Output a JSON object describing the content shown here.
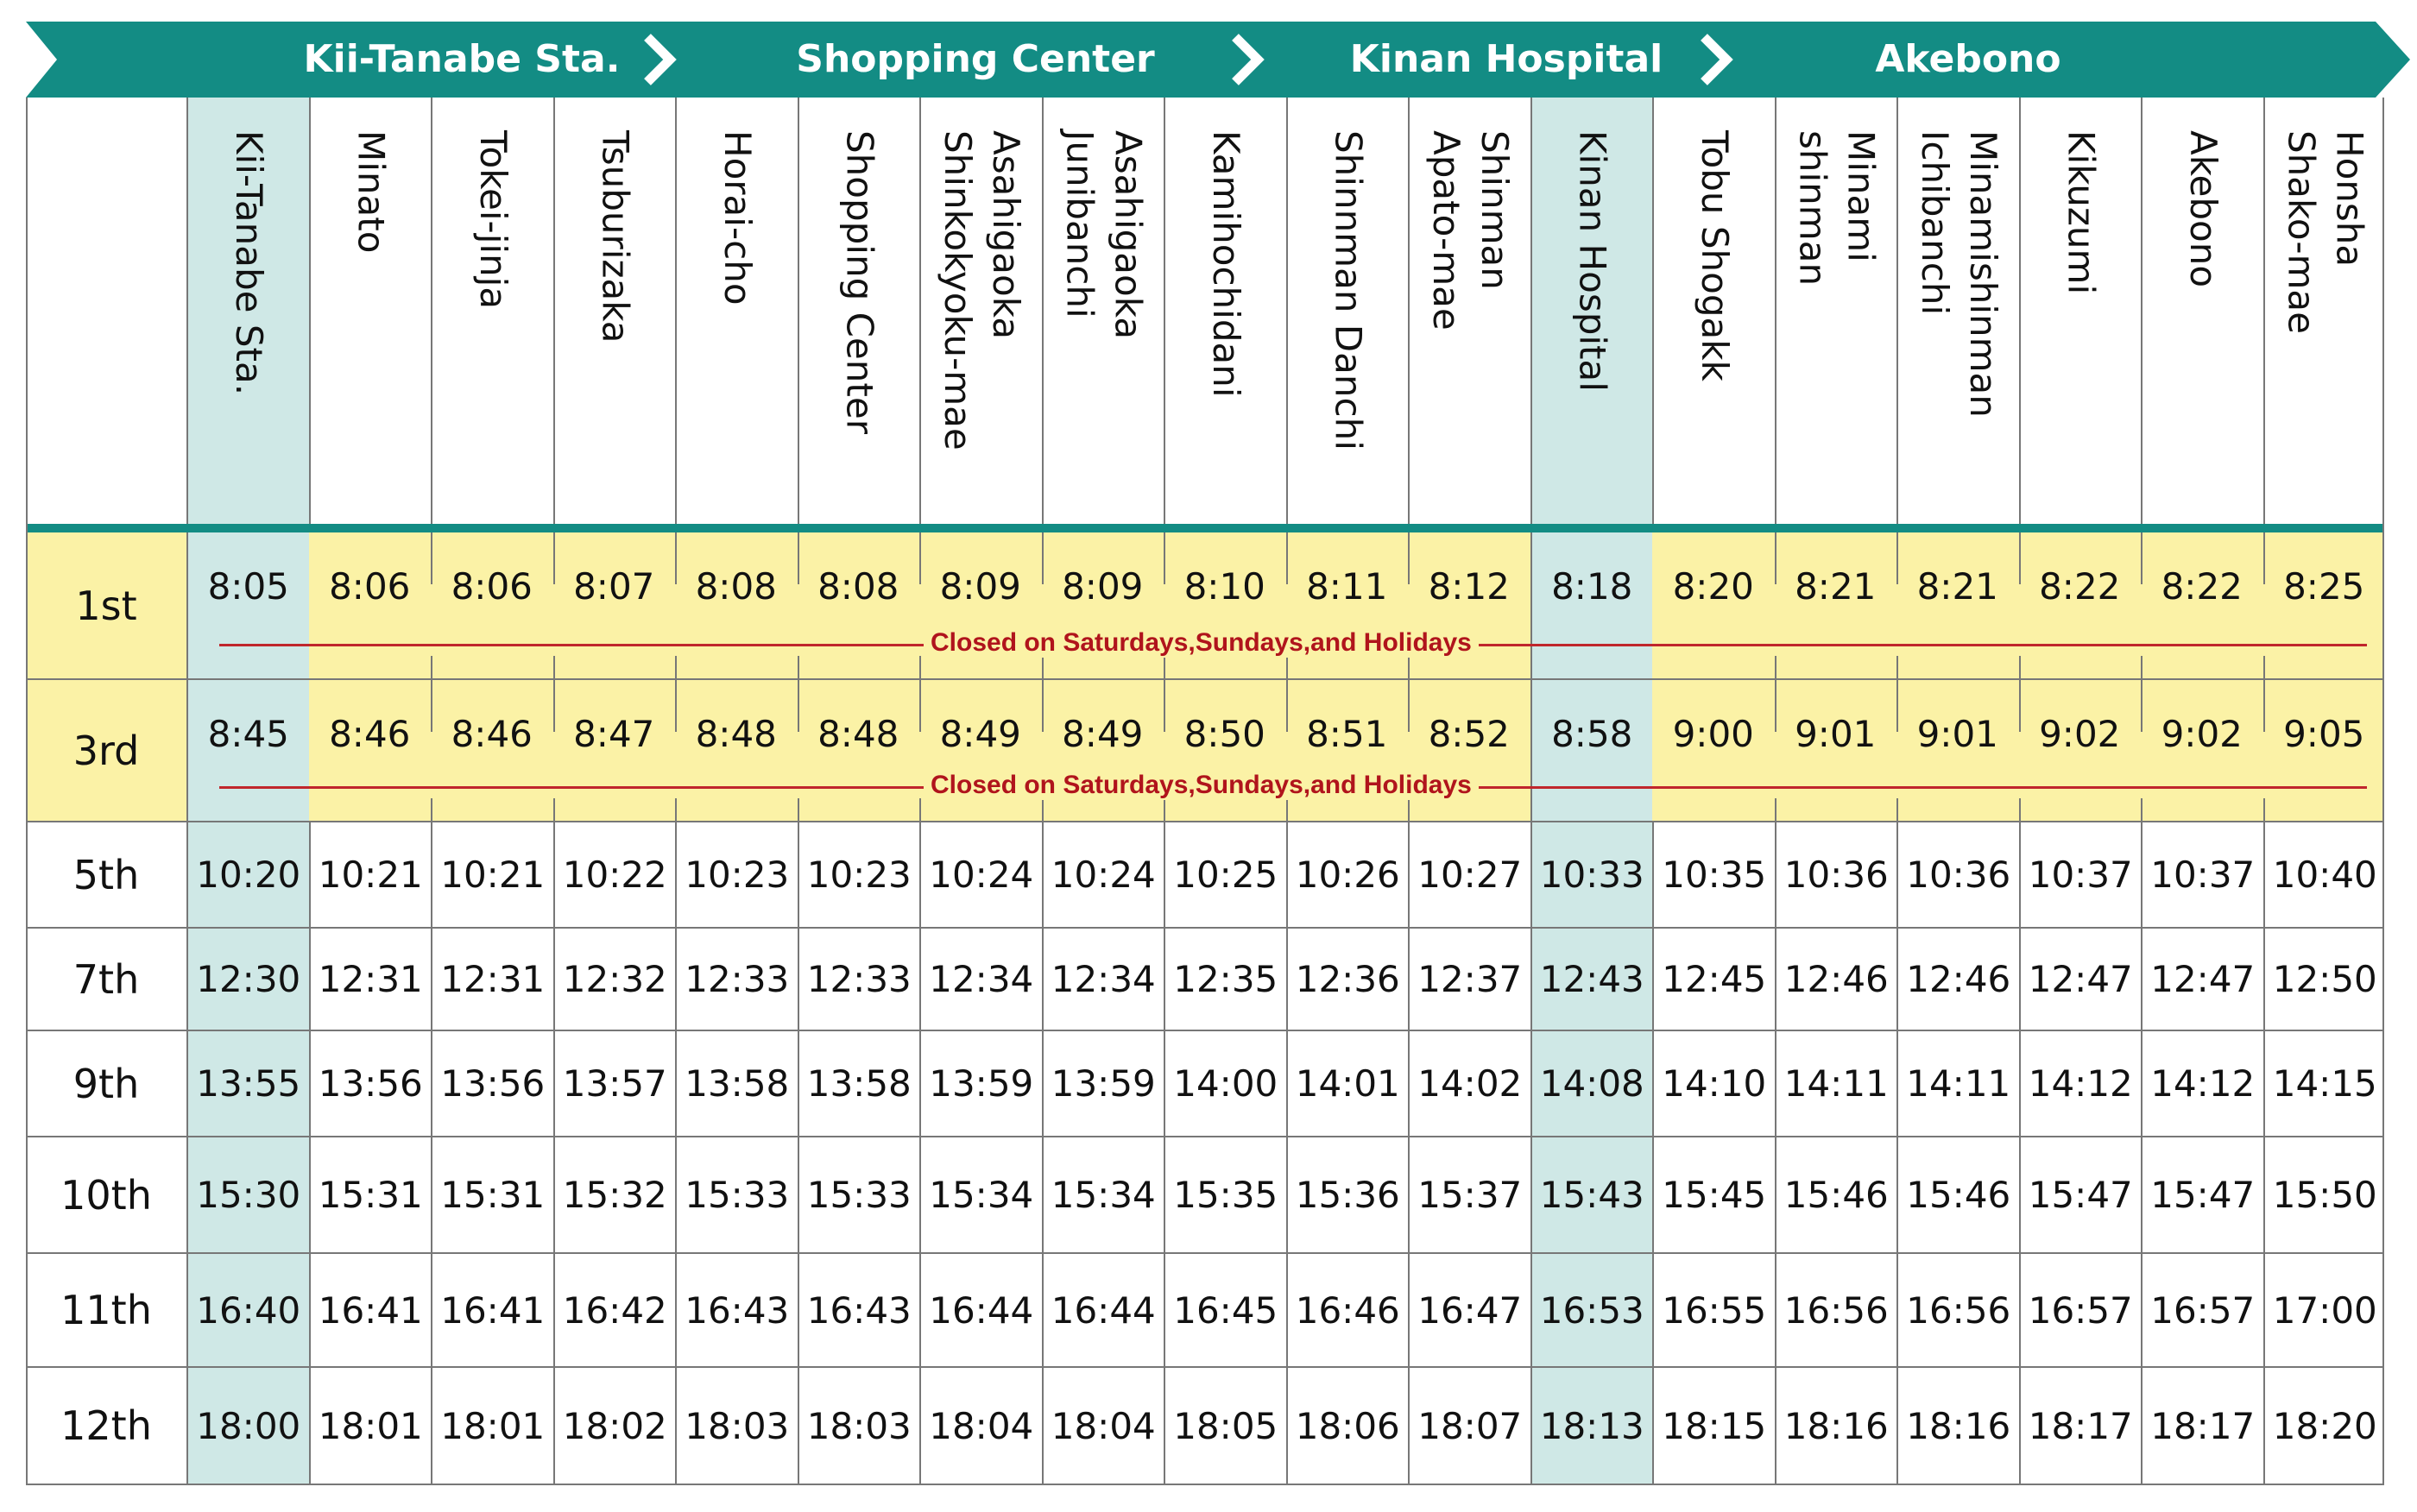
{
  "route": {
    "segments": [
      "Kii-Tanabe Sta.",
      "Shopping Center",
      "Kinan Hospital",
      "Akebono"
    ],
    "banner_color": "#138c84"
  },
  "stops": [
    "Kii-Tanabe Sta.",
    "Minato",
    "Tokei-jinja",
    "Tsuburizaka",
    "Horai-cho",
    "Shopping Center",
    "Asahigaoka\nShinkokyoku-mae",
    "Asahigaoka\nJunibanchi",
    "Kamihochidani",
    "Shinnman Danchi",
    "Shinman\nApato-mae",
    "Kinan Hospital",
    "Tobu Shogakk",
    "Minami\nshinman",
    "Minamishinman\nIchibanchi",
    "Kikuzumi",
    "Akebono",
    "Honsha\nShako-mae"
  ],
  "highlight_color": "#cfe8e6",
  "weekday_only_color": "#fbf2a6",
  "trips": [
    {
      "label": "1st",
      "weekday_only": true,
      "note": "Closed on Saturdays,Sundays,and Holidays",
      "times": [
        "8:05",
        "8:06",
        "8:06",
        "8:07",
        "8:08",
        "8:08",
        "8:09",
        "8:09",
        "8:10",
        "8:11",
        "8:12",
        "8:18",
        "8:20",
        "8:21",
        "8:21",
        "8:22",
        "8:22",
        "8:25"
      ]
    },
    {
      "label": "3rd",
      "weekday_only": true,
      "note": "Closed on Saturdays,Sundays,and Holidays",
      "times": [
        "8:45",
        "8:46",
        "8:46",
        "8:47",
        "8:48",
        "8:48",
        "8:49",
        "8:49",
        "8:50",
        "8:51",
        "8:52",
        "8:58",
        "9:00",
        "9:01",
        "9:01",
        "9:02",
        "9:02",
        "9:05"
      ]
    },
    {
      "label": "5th",
      "weekday_only": false,
      "times": [
        "10:20",
        "10:21",
        "10:21",
        "10:22",
        "10:23",
        "10:23",
        "10:24",
        "10:24",
        "10:25",
        "10:26",
        "10:27",
        "10:33",
        "10:35",
        "10:36",
        "10:36",
        "10:37",
        "10:37",
        "10:40"
      ]
    },
    {
      "label": "7th",
      "weekday_only": false,
      "times": [
        "12:30",
        "12:31",
        "12:31",
        "12:32",
        "12:33",
        "12:33",
        "12:34",
        "12:34",
        "12:35",
        "12:36",
        "12:37",
        "12:43",
        "12:45",
        "12:46",
        "12:46",
        "12:47",
        "12:47",
        "12:50"
      ]
    },
    {
      "label": "9th",
      "weekday_only": false,
      "times": [
        "13:55",
        "13:56",
        "13:56",
        "13:57",
        "13:58",
        "13:58",
        "13:59",
        "13:59",
        "14:00",
        "14:01",
        "14:02",
        "14:08",
        "14:10",
        "14:11",
        "14:11",
        "14:12",
        "14:12",
        "14:15"
      ]
    },
    {
      "label": "10th",
      "weekday_only": false,
      "times": [
        "15:30",
        "15:31",
        "15:31",
        "15:32",
        "15:33",
        "15:33",
        "15:34",
        "15:34",
        "15:35",
        "15:36",
        "15:37",
        "15:43",
        "15:45",
        "15:46",
        "15:46",
        "15:47",
        "15:47",
        "15:50"
      ]
    },
    {
      "label": "11th",
      "weekday_only": false,
      "times": [
        "16:40",
        "16:41",
        "16:41",
        "16:42",
        "16:43",
        "16:43",
        "16:44",
        "16:44",
        "16:45",
        "16:46",
        "16:47",
        "16:53",
        "16:55",
        "16:56",
        "16:56",
        "16:57",
        "16:57",
        "17:00"
      ]
    },
    {
      "label": "12th",
      "weekday_only": false,
      "times": [
        "18:00",
        "18:01",
        "18:01",
        "18:02",
        "18:03",
        "18:03",
        "18:04",
        "18:04",
        "18:05",
        "18:06",
        "18:07",
        "18:13",
        "18:15",
        "18:16",
        "18:16",
        "18:17",
        "18:17",
        "18:20"
      ]
    }
  ]
}
